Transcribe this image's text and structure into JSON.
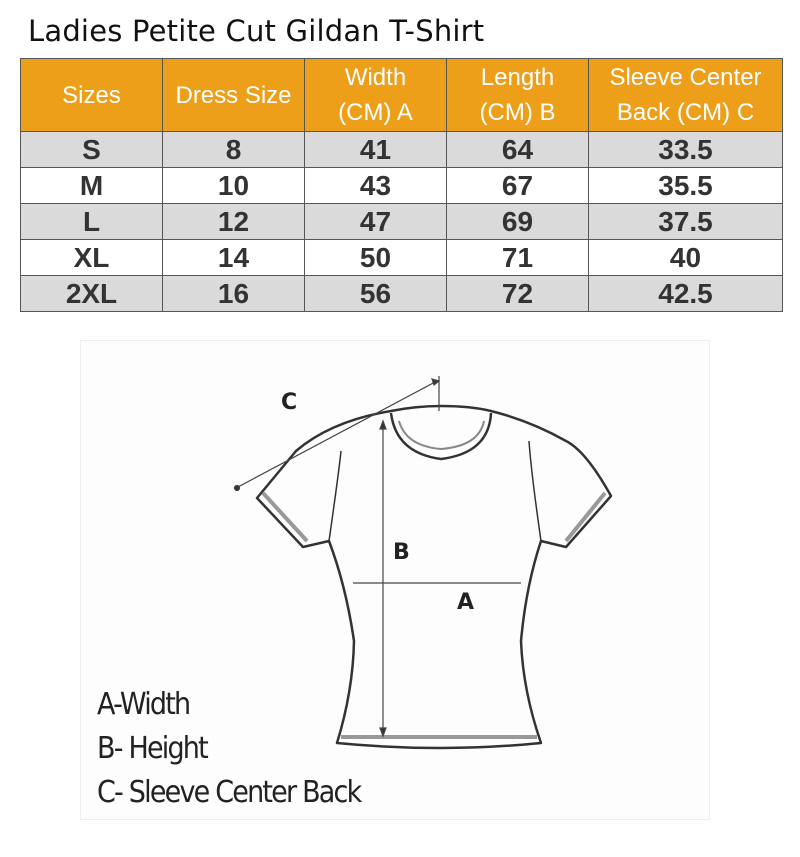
{
  "title": "Ladies Petite Cut Gildan T-Shirt",
  "colors": {
    "header": "#ED9F1A",
    "stripe": "#DADADA"
  },
  "table": {
    "headers": [
      [
        "Sizes"
      ],
      [
        "Dress Size"
      ],
      [
        "Width",
        "(CM) A"
      ],
      [
        "Length",
        "(CM) B"
      ],
      [
        "Sleeve Center",
        "Back (CM) C"
      ]
    ],
    "rows": [
      [
        "S",
        "8",
        "41",
        "64",
        "33.5"
      ],
      [
        "M",
        "10",
        "43",
        "67",
        "35.5"
      ],
      [
        "L",
        "12",
        "47",
        "69",
        "37.5"
      ],
      [
        "XL",
        "14",
        "50",
        "71",
        "40"
      ],
      [
        "2XL",
        "16",
        "56",
        "72",
        "42.5"
      ]
    ]
  },
  "diagram": {
    "labels": {
      "a": "A",
      "b": "B",
      "c": "C"
    },
    "legend": [
      "A-Width",
      "B- Height",
      "C- Sleeve Center Back"
    ]
  }
}
